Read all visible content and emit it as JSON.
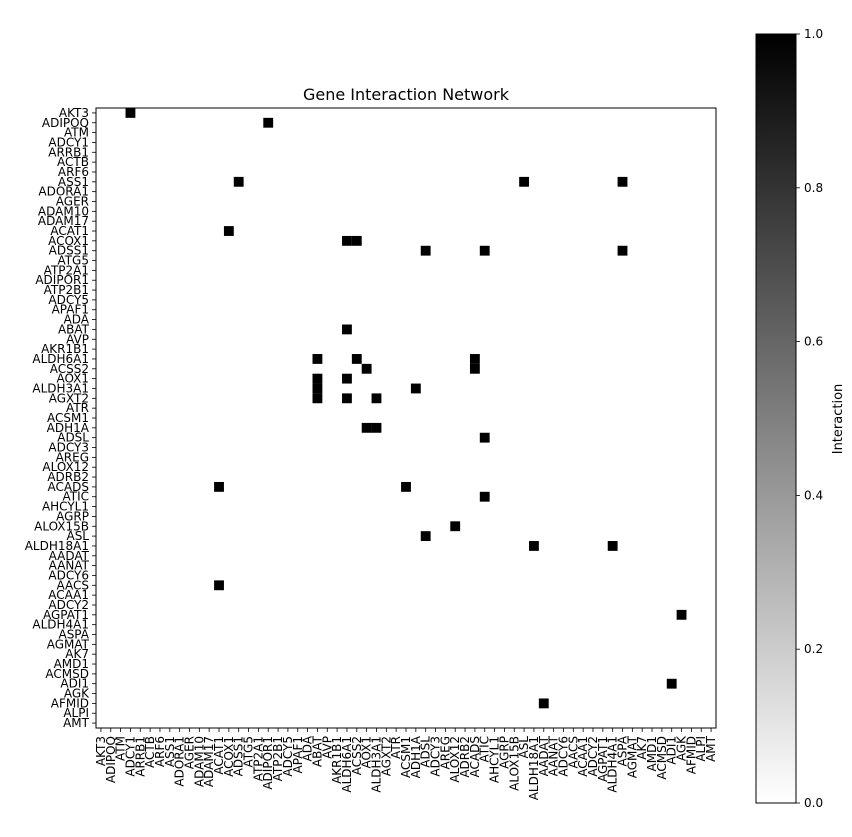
{
  "chart_data": {
    "type": "heatmap",
    "title": "Gene Interaction Network",
    "genes": [
      "AKT3",
      "ADIPOQ",
      "ATM",
      "ADCY1",
      "ARRB1",
      "ACTB",
      "ARF6",
      "ASS1",
      "ADORA1",
      "AGER",
      "ADAM10",
      "ADAM17",
      "ACAT1",
      "ACOX1",
      "ADSS1",
      "ATG5",
      "ATP2A1",
      "ADIPOR1",
      "ATP2B1",
      "ADCY5",
      "APAF1",
      "ADA",
      "ABAT",
      "AVP",
      "AKR1B1",
      "ALDH6A1",
      "ACSS2",
      "AOX1",
      "ALDH3A1",
      "AGXT2",
      "ATR",
      "ACSM1",
      "ADH1A",
      "ADSL",
      "ADCY3",
      "AREG",
      "ALOX12",
      "ADRB2",
      "ACADS",
      "ATIC",
      "AHCYL1",
      "AGRP",
      "ALOX15B",
      "ASL",
      "ALDH18A1",
      "AADAT",
      "AANAT",
      "ADCY6",
      "AACS",
      "ACAA1",
      "ADCY2",
      "AGPAT1",
      "ALDH4A1",
      "ASPA",
      "AGMAT",
      "AK7",
      "AMD1",
      "ACMSD",
      "ADI1",
      "AGK",
      "AFMID",
      "ALPI",
      "AMT"
    ],
    "cells": [
      {
        "row": "AKT3",
        "col": "ADCY1",
        "value": 1
      },
      {
        "row": "ADIPOQ",
        "col": "ADIPOR1",
        "value": 1
      },
      {
        "row": "ASS1",
        "col": "ADSS1",
        "value": 1
      },
      {
        "row": "ASS1",
        "col": "ASL",
        "value": 1
      },
      {
        "row": "ASS1",
        "col": "ASPA",
        "value": 1
      },
      {
        "row": "ACAT1",
        "col": "ACOX1",
        "value": 1
      },
      {
        "row": "ACOX1",
        "col": "ALDH6A1",
        "value": 1
      },
      {
        "row": "ACOX1",
        "col": "ACSS2",
        "value": 1
      },
      {
        "row": "ADSS1",
        "col": "ADSL",
        "value": 1
      },
      {
        "row": "ADSS1",
        "col": "ATIC",
        "value": 1
      },
      {
        "row": "ADSS1",
        "col": "ASPA",
        "value": 1
      },
      {
        "row": "ABAT",
        "col": "ALDH6A1",
        "value": 1
      },
      {
        "row": "ALDH6A1",
        "col": "ABAT",
        "value": 1
      },
      {
        "row": "ALDH6A1",
        "col": "ACSS2",
        "value": 1
      },
      {
        "row": "ALDH6A1",
        "col": "ACADS",
        "value": 1
      },
      {
        "row": "ACSS2",
        "col": "AOX1",
        "value": 1
      },
      {
        "row": "ACSS2",
        "col": "ACADS",
        "value": 1
      },
      {
        "row": "AOX1",
        "col": "ABAT",
        "value": 1
      },
      {
        "row": "AOX1",
        "col": "ALDH6A1",
        "value": 1
      },
      {
        "row": "ALDH3A1",
        "col": "ABAT",
        "value": 1
      },
      {
        "row": "ALDH3A1",
        "col": "ADH1A",
        "value": 1
      },
      {
        "row": "AGXT2",
        "col": "ABAT",
        "value": 1
      },
      {
        "row": "AGXT2",
        "col": "ALDH6A1",
        "value": 1
      },
      {
        "row": "AGXT2",
        "col": "ALDH3A1",
        "value": 1
      },
      {
        "row": "ADH1A",
        "col": "ALDH3A1",
        "value": 1
      },
      {
        "row": "ADH1A",
        "col": "AOX1",
        "value": 1
      },
      {
        "row": "ADSL",
        "col": "ATIC",
        "value": 1
      },
      {
        "row": "ACADS",
        "col": "ACAT1",
        "value": 1
      },
      {
        "row": "ACADS",
        "col": "ACSM1",
        "value": 1
      },
      {
        "row": "ATIC",
        "col": "ATIC",
        "value": 1
      },
      {
        "row": "ALOX15B",
        "col": "ALOX12",
        "value": 1
      },
      {
        "row": "ASL",
        "col": "ADSL",
        "value": 1
      },
      {
        "row": "ALDH18A1",
        "col": "ALDH18A1",
        "value": 1
      },
      {
        "row": "ALDH18A1",
        "col": "ALDH4A1",
        "value": 1
      },
      {
        "row": "AACS",
        "col": "ACAT1",
        "value": 1
      },
      {
        "row": "AGPAT1",
        "col": "AGK",
        "value": 1
      },
      {
        "row": "ADI1",
        "col": "ADI1",
        "value": 1
      },
      {
        "row": "AFMID",
        "col": "AADAT",
        "value": 1
      }
    ],
    "colorbar": {
      "label": "Interaction",
      "ticks": [
        "0.0",
        "0.2",
        "0.4",
        "0.6",
        "0.8",
        "1.0"
      ],
      "min": 0,
      "max": 1
    },
    "grid": false,
    "legend": "right"
  }
}
